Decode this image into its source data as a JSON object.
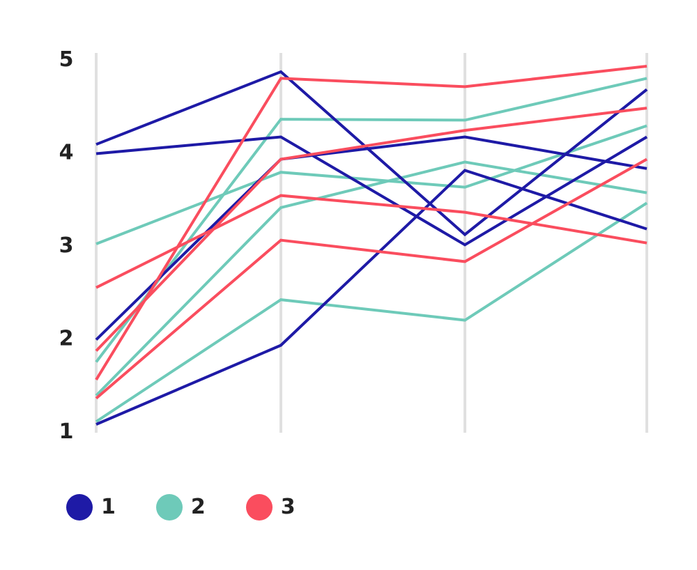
{
  "chart_data": {
    "type": "parallel_coordinates",
    "title": "",
    "axes": [
      "dim1",
      "dim2",
      "dim3",
      "dim4"
    ],
    "axis_labels_visible": false,
    "ylim": [
      1,
      5
    ],
    "yticks": [
      1,
      2,
      3,
      4,
      5
    ],
    "grid": false,
    "legend_position": "bottom-left",
    "series": [
      {
        "name": "1",
        "color": "#1e1aa6",
        "lines": [
          [
            4.07,
            4.85,
            3.1,
            4.66
          ],
          [
            3.97,
            4.15,
            2.99,
            4.15
          ],
          [
            1.97,
            3.91,
            4.15,
            3.81
          ],
          [
            1.06,
            1.91,
            3.79,
            3.16
          ]
        ]
      },
      {
        "name": "2",
        "color": "#6ecab9",
        "lines": [
          [
            3.0,
            3.77,
            3.61,
            4.27
          ],
          [
            1.73,
            4.34,
            4.33,
            4.78
          ],
          [
            1.37,
            3.39,
            3.88,
            3.55
          ],
          [
            1.09,
            2.4,
            2.18,
            3.44
          ]
        ]
      },
      {
        "name": "3",
        "color": "#fa4d5e",
        "lines": [
          [
            2.53,
            3.52,
            3.34,
            3.01
          ],
          [
            1.85,
            3.91,
            4.22,
            4.46
          ],
          [
            1.54,
            4.78,
            4.69,
            4.91
          ],
          [
            1.34,
            3.04,
            2.81,
            3.91
          ]
        ]
      }
    ]
  },
  "y_axis": {
    "ticks": [
      {
        "label": "5",
        "value": 5
      },
      {
        "label": "4",
        "value": 4
      },
      {
        "label": "3",
        "value": 3
      },
      {
        "label": "2",
        "value": 2
      },
      {
        "label": "1",
        "value": 1
      }
    ]
  },
  "legend": {
    "items": [
      {
        "label": "1",
        "color": "#1e1aa6"
      },
      {
        "label": "2",
        "color": "#6ecab9"
      },
      {
        "label": "3",
        "color": "#fa4d5e"
      }
    ]
  },
  "colors": {
    "axis": "#e0e0e0",
    "text": "#222222",
    "background": "#ffffff"
  }
}
